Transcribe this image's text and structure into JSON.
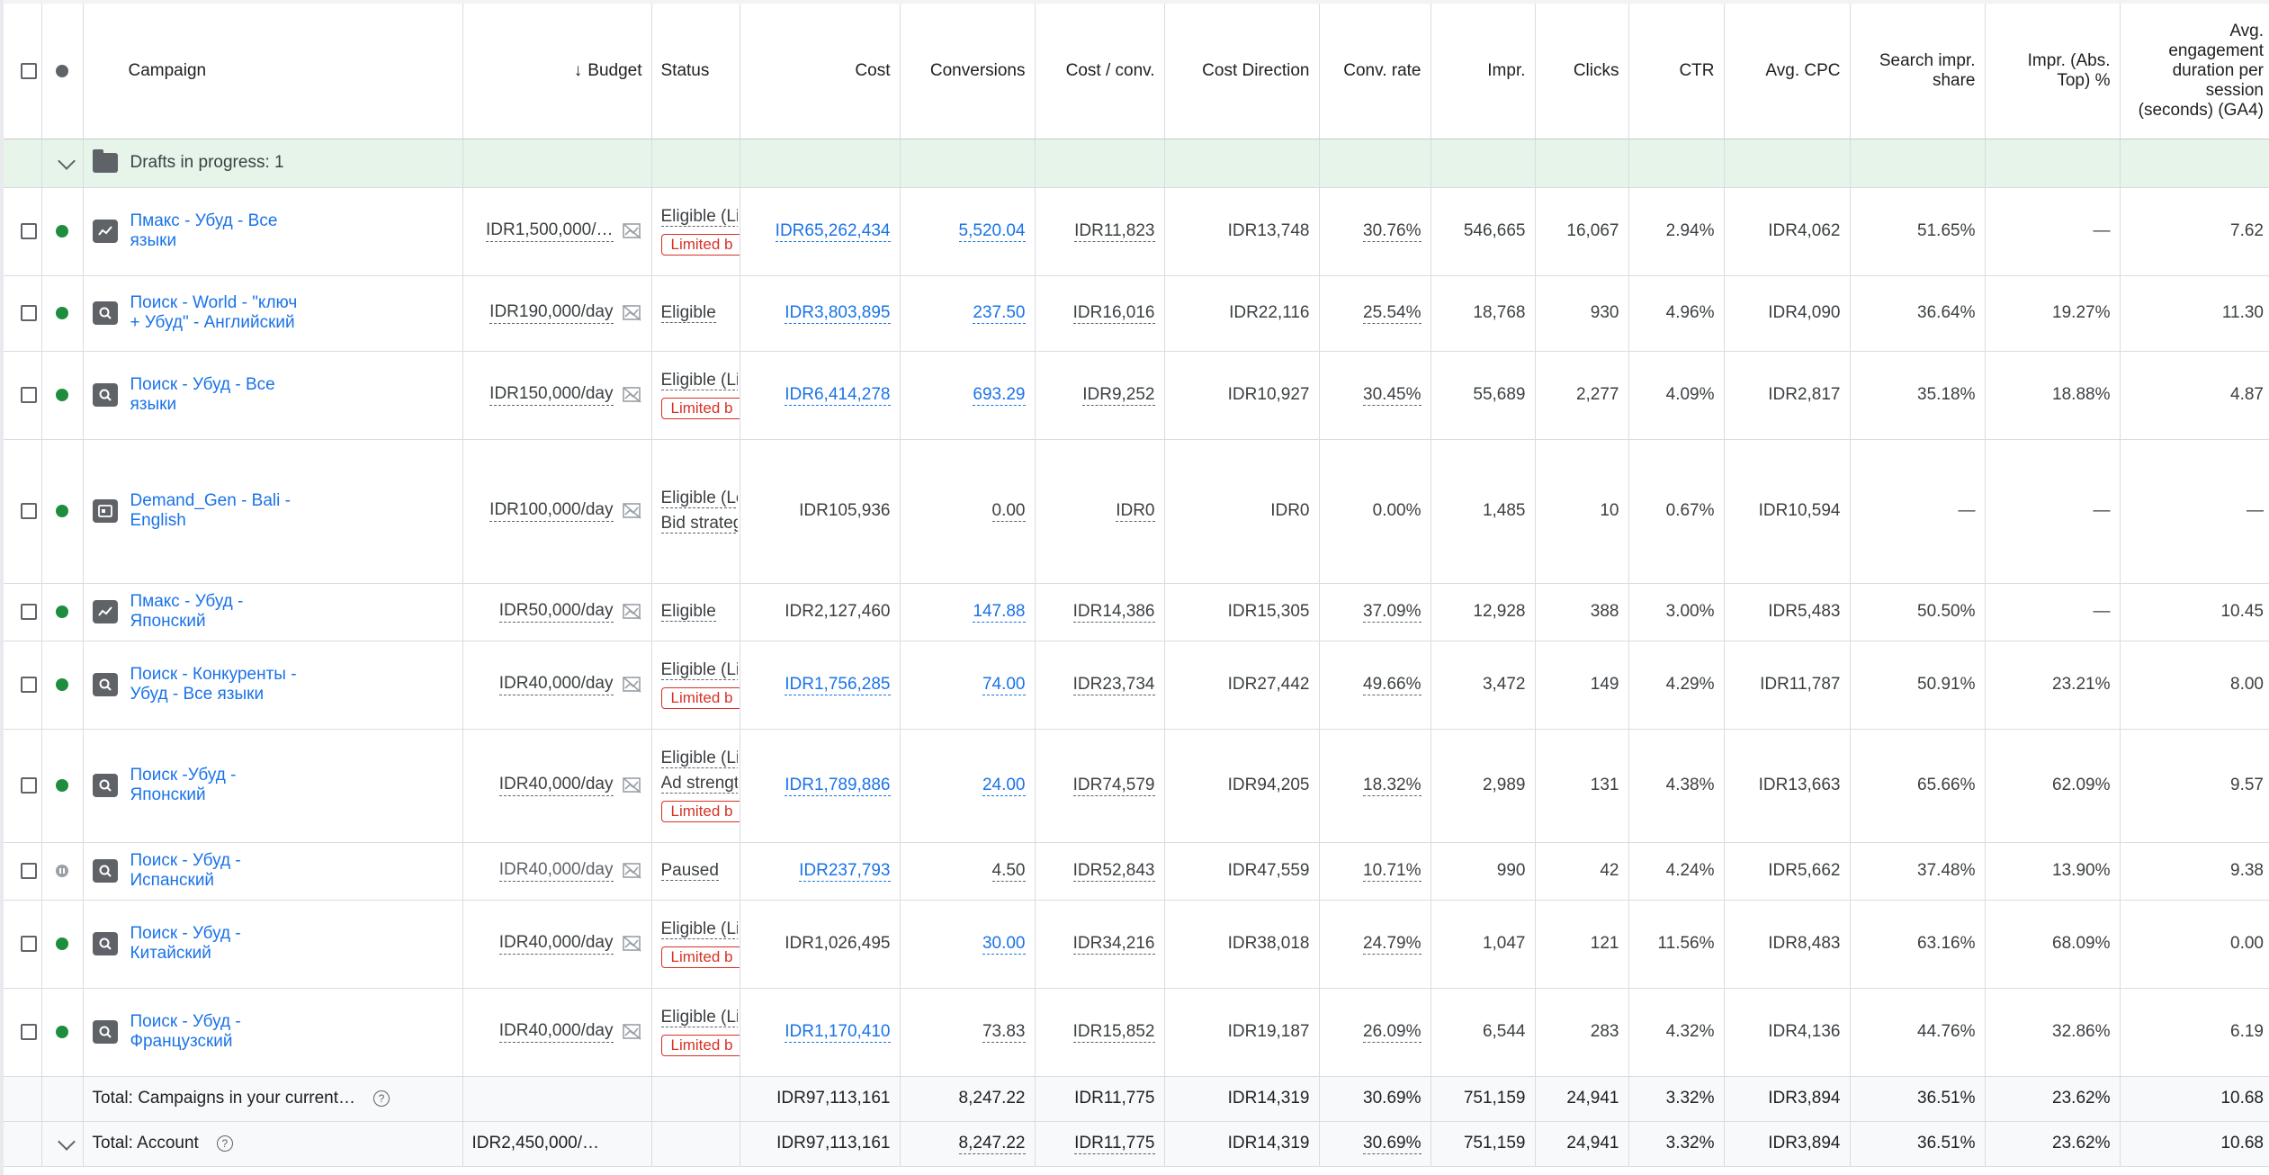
{
  "header": {
    "campaign": "Campaign",
    "budget": "Budget",
    "status": "Status",
    "cost": "Cost",
    "conversions": "Conversions",
    "cost_per_conv": "Cost / conv.",
    "cost_direction": "Cost Direction",
    "conv_rate": "Conv. rate",
    "impr": "Impr.",
    "clicks": "Clicks",
    "ctr": "CTR",
    "avg_cpc": "Avg. CPC",
    "search_impr_share": "Search impr. share",
    "impr_abs_top": "Impr. (Abs. Top) %",
    "avg_engagement": "Avg. engagement duration per session (seconds) (GA4)"
  },
  "drafts": {
    "label": "Drafts in progress: 1"
  },
  "rows": [
    {
      "icon": "pmax-icon",
      "name": "Пмакс - Убуд - Все языки",
      "state": "enabled",
      "budget": "IDR1,500,000/…",
      "status1": "Eligible (Li",
      "status2": "",
      "limited": "Limited b",
      "cost": "IDR65,262,434",
      "cost_link": true,
      "conversions": "5,520.04",
      "conv_link": true,
      "cost_per_conv": "IDR11,823",
      "cost_direction": "IDR13,748",
      "conv_rate": "30.76%",
      "impr": "546,665",
      "clicks": "16,067",
      "ctr": "2.94%",
      "avg_cpc": "IDR4,062",
      "search_impr_share": "51.65%",
      "impr_abs_top": "—",
      "avg_engagement": "7.62"
    },
    {
      "icon": "search-icon",
      "name": "Поиск - World - \"ключ + Убуд\" - Английский",
      "state": "enabled",
      "budget": "IDR190,000/day",
      "status1": "Eligible",
      "status2": "",
      "limited": "",
      "cost": "IDR3,803,895",
      "cost_link": true,
      "conversions": "237.50",
      "conv_link": true,
      "cost_per_conv": "IDR16,016",
      "cost_direction": "IDR22,116",
      "conv_rate": "25.54%",
      "impr": "18,768",
      "clicks": "930",
      "ctr": "4.96%",
      "avg_cpc": "IDR4,090",
      "search_impr_share": "36.64%",
      "impr_abs_top": "19.27%",
      "avg_engagement": "11.30"
    },
    {
      "icon": "search-icon",
      "name": "Поиск - Убуд - Все языки",
      "state": "enabled",
      "budget": "IDR150,000/day",
      "status1": "Eligible (Li",
      "status2": "",
      "limited": "Limited b",
      "cost": "IDR6,414,278",
      "cost_link": true,
      "conversions": "693.29",
      "conv_link": true,
      "cost_per_conv": "IDR9,252",
      "cost_direction": "IDR10,927",
      "conv_rate": "30.45%",
      "impr": "55,689",
      "clicks": "2,277",
      "ctr": "4.09%",
      "avg_cpc": "IDR2,817",
      "search_impr_share": "35.18%",
      "impr_abs_top": "18.88%",
      "avg_engagement": "4.87"
    },
    {
      "icon": "demand-gen-icon",
      "name": "Demand_Gen - Bali - English",
      "state": "enabled",
      "budget": "IDR100,000/day",
      "status1": "Eligible (Learning)",
      "status2": "Bid strategy learning",
      "limited": "",
      "cost": "IDR105,936",
      "cost_link": false,
      "conversions": "0.00",
      "conv_link": false,
      "cost_per_conv": "IDR0",
      "cost_direction": "IDR0",
      "conv_rate": "0.00%",
      "impr": "1,485",
      "clicks": "10",
      "ctr": "0.67%",
      "avg_cpc": "IDR10,594",
      "search_impr_share": "—",
      "impr_abs_top": "—",
      "avg_engagement": "—"
    },
    {
      "icon": "pmax-icon",
      "name": "Пмакс - Убуд - Японский",
      "state": "enabled",
      "budget": "IDR50,000/day",
      "status1": "Eligible",
      "status2": "",
      "limited": "",
      "cost": "IDR2,127,460",
      "cost_link": false,
      "conversions": "147.88",
      "conv_link": true,
      "cost_per_conv": "IDR14,386",
      "cost_direction": "IDR15,305",
      "conv_rate": "37.09%",
      "impr": "12,928",
      "clicks": "388",
      "ctr": "3.00%",
      "avg_cpc": "IDR5,483",
      "search_impr_share": "50.50%",
      "impr_abs_top": "—",
      "avg_engagement": "10.45"
    },
    {
      "icon": "search-icon",
      "name": "Поиск - Конкуренты - Убуд - Все языки",
      "state": "enabled",
      "budget": "IDR40,000/day",
      "status1": "Eligible (Li",
      "status2": "",
      "limited": "Limited b",
      "cost": "IDR1,756,285",
      "cost_link": true,
      "conversions": "74.00",
      "conv_link": true,
      "cost_per_conv": "IDR23,734",
      "cost_direction": "IDR27,442",
      "conv_rate": "49.66%",
      "impr": "3,472",
      "clicks": "149",
      "ctr": "4.29%",
      "avg_cpc": "IDR11,787",
      "search_impr_share": "50.91%",
      "impr_abs_top": "23.21%",
      "avg_engagement": "8.00"
    },
    {
      "icon": "search-icon",
      "name": "Поиск -Убуд - Японский",
      "state": "enabled",
      "budget": "IDR40,000/day",
      "status1": "Eligible (Li",
      "status2": "Ad strengt",
      "limited": "Limited b",
      "cost": "IDR1,789,886",
      "cost_link": true,
      "conversions": "24.00",
      "conv_link": true,
      "cost_per_conv": "IDR74,579",
      "cost_direction": "IDR94,205",
      "conv_rate": "18.32%",
      "impr": "2,989",
      "clicks": "131",
      "ctr": "4.38%",
      "avg_cpc": "IDR13,663",
      "search_impr_share": "65.66%",
      "impr_abs_top": "62.09%",
      "avg_engagement": "9.57"
    },
    {
      "icon": "search-icon",
      "name": "Поиск - Убуд - Испанский",
      "state": "paused",
      "budget": "IDR40,000/day",
      "status1": "Paused",
      "status2": "",
      "limited": "",
      "cost": "IDR237,793",
      "cost_link": true,
      "conversions": "4.50",
      "conv_link": false,
      "cost_per_conv": "IDR52,843",
      "cost_direction": "IDR47,559",
      "conv_rate": "10.71%",
      "impr": "990",
      "clicks": "42",
      "ctr": "4.24%",
      "avg_cpc": "IDR5,662",
      "search_impr_share": "37.48%",
      "impr_abs_top": "13.90%",
      "avg_engagement": "9.38"
    },
    {
      "icon": "search-icon",
      "name": "Поиск - Убуд - Китайский",
      "state": "enabled",
      "budget": "IDR40,000/day",
      "status1": "Eligible (Li",
      "status2": "",
      "limited": "Limited b",
      "cost": "IDR1,026,495",
      "cost_link": false,
      "conversions": "30.00",
      "conv_link": true,
      "cost_per_conv": "IDR34,216",
      "cost_direction": "IDR38,018",
      "conv_rate": "24.79%",
      "impr": "1,047",
      "clicks": "121",
      "ctr": "11.56%",
      "avg_cpc": "IDR8,483",
      "search_impr_share": "63.16%",
      "impr_abs_top": "68.09%",
      "avg_engagement": "0.00"
    },
    {
      "icon": "search-icon",
      "name": "Поиск - Убуд - Французский",
      "state": "enabled",
      "budget": "IDR40,000/day",
      "status1": "Eligible (Li",
      "status2": "",
      "limited": "Limited b",
      "cost": "IDR1,170,410",
      "cost_link": true,
      "conversions": "73.83",
      "conv_link": false,
      "cost_per_conv": "IDR15,852",
      "cost_direction": "IDR19,187",
      "conv_rate": "26.09%",
      "impr": "6,544",
      "clicks": "283",
      "ctr": "4.32%",
      "avg_cpc": "IDR4,136",
      "search_impr_share": "44.76%",
      "impr_abs_top": "32.86%",
      "avg_engagement": "6.19"
    }
  ],
  "totals": [
    {
      "label": "Total: Campaigns in your current…",
      "budget": "",
      "cost": "IDR97,113,161",
      "conversions": "8,247.22",
      "cost_per_conv": "IDR11,775",
      "cost_direction": "IDR14,319",
      "conv_rate": "30.69%",
      "impr": "751,159",
      "clicks": "24,941",
      "ctr": "3.32%",
      "avg_cpc": "IDR3,894",
      "search_impr_share": "36.51%",
      "impr_abs_top": "23.62%",
      "avg_engagement": "10.68"
    },
    {
      "label": "Total: Account",
      "budget": "IDR2,450,000/…",
      "cost": "IDR97,113,161",
      "conversions": "8,247.22",
      "cost_per_conv": "IDR11,775",
      "cost_direction": "IDR14,319",
      "conv_rate": "30.69%",
      "impr": "751,159",
      "clicks": "24,941",
      "ctr": "3.32%",
      "avg_cpc": "IDR3,894",
      "search_impr_share": "36.51%",
      "impr_abs_top": "23.62%",
      "avg_engagement": "10.68"
    }
  ],
  "colors": {
    "link": "#1a73e8",
    "enabled": "#1e8e3e",
    "limited": "#d93025",
    "draft_bg": "#e6f4ea"
  }
}
